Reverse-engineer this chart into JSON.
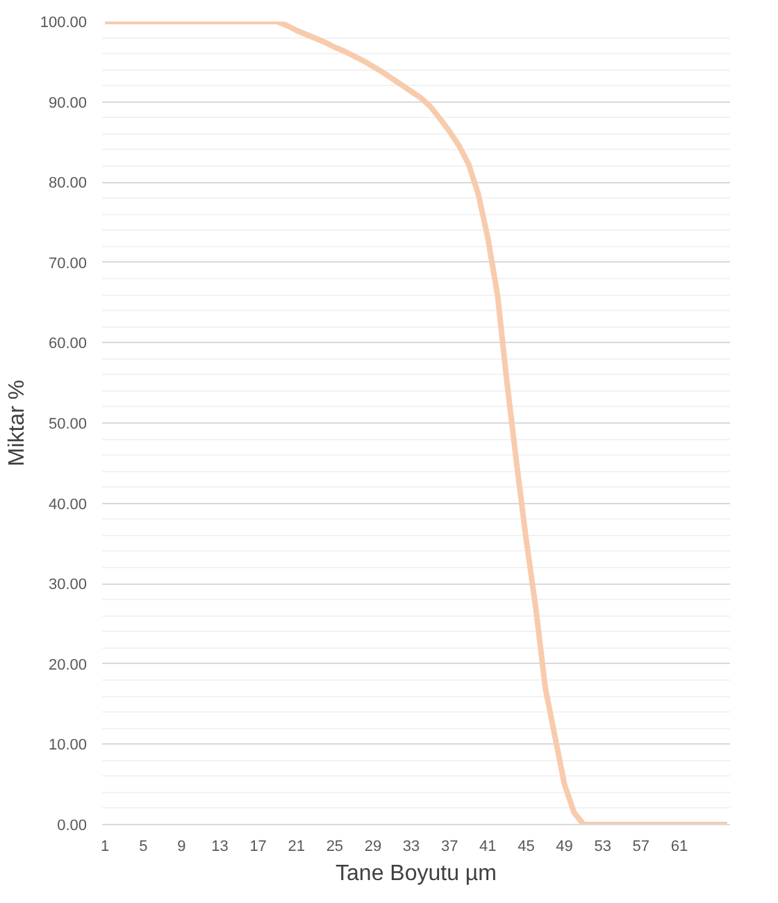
{
  "chart_data": {
    "type": "line",
    "xlabel": "Tane Boyutu µm",
    "ylabel": "Miktar %",
    "categories": [
      "1",
      null,
      null,
      null,
      "5",
      null,
      null,
      null,
      "9",
      null,
      null,
      null,
      "13",
      null,
      null,
      null,
      "17",
      null,
      null,
      null,
      "21",
      null,
      null,
      null,
      "25",
      null,
      null,
      null,
      "29",
      null,
      null,
      null,
      "33",
      null,
      null,
      null,
      "37",
      null,
      null,
      null,
      "41",
      null,
      null,
      null,
      "45",
      null,
      null,
      null,
      "49",
      null,
      null,
      null,
      "53",
      null,
      null,
      null,
      "57",
      null,
      null,
      null,
      "61",
      null,
      null,
      null,
      null,
      null
    ],
    "series": [
      {
        "color": "#f8cbad",
        "values": [
          100,
          100,
          100,
          100,
          100,
          100,
          100,
          100,
          100,
          100,
          100,
          100,
          100,
          100,
          100,
          100,
          100,
          100,
          100,
          99.5,
          98.9,
          98.4,
          97.9,
          97.4,
          96.8,
          96.3,
          95.7,
          95.1,
          94.4,
          93.7,
          92.9,
          92.1,
          91.3,
          90.5,
          89.4,
          87.9,
          86.3,
          84.5,
          82.2,
          78.5,
          73,
          66,
          55,
          45,
          35.5,
          27,
          17,
          11,
          5,
          1.5,
          0,
          0,
          0,
          0,
          0,
          0,
          0,
          0,
          0,
          0,
          0,
          0,
          0,
          0,
          0,
          0
        ]
      }
    ],
    "ylim": [
      0,
      100
    ],
    "yticks": [
      {
        "value": 0,
        "label": "0.00"
      },
      {
        "value": 10,
        "label": "10.00"
      },
      {
        "value": 20,
        "label": "20.00"
      },
      {
        "value": 30,
        "label": "30.00"
      },
      {
        "value": 40,
        "label": "40.00"
      },
      {
        "value": 50,
        "label": "50.00"
      },
      {
        "value": 60,
        "label": "60.00"
      },
      {
        "value": 70,
        "label": "70.00"
      },
      {
        "value": 80,
        "label": "80.00"
      },
      {
        "value": 90,
        "label": "90.00"
      },
      {
        "value": 100,
        "label": "100.00"
      }
    ],
    "grid": "y",
    "line_style": "solid",
    "marker": "none"
  }
}
